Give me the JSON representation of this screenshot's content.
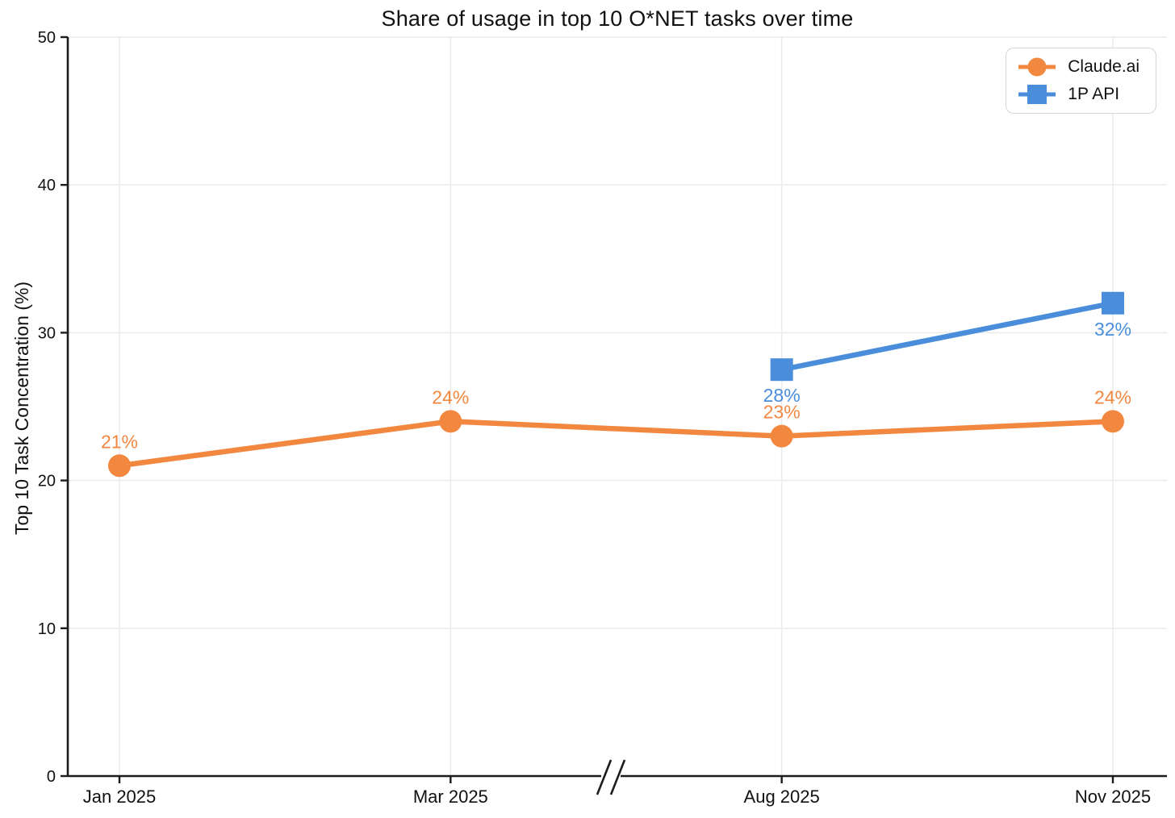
{
  "chart_data": {
    "type": "line",
    "title": "Share of usage in top 10 O*NET tasks over time",
    "xlabel": "",
    "ylabel": "Top 10 Task Concentration (%)",
    "categories": [
      "Jan 2025",
      "Mar 2025",
      "Aug 2025",
      "Nov 2025"
    ],
    "y_ticks": [
      0,
      10,
      20,
      30,
      40,
      50
    ],
    "y_tick_labels": [
      "0",
      "10",
      "20",
      "30",
      "40",
      "50"
    ],
    "ylim": [
      0,
      50
    ],
    "grid": true,
    "legend_position": "top-right",
    "axis_break": {
      "symbol": "//",
      "between": [
        "Mar 2025",
        "Aug 2025"
      ]
    },
    "series": [
      {
        "name": "Claude.ai",
        "marker": "circle",
        "color": "#F2873F",
        "x": [
          "Jan 2025",
          "Mar 2025",
          "Aug 2025",
          "Nov 2025"
        ],
        "values": [
          21,
          24,
          23,
          24
        ],
        "labels": [
          "21%",
          "24%",
          "23%",
          "24%"
        ],
        "label_position": "above"
      },
      {
        "name": "1P API",
        "marker": "square",
        "color": "#4A8EDB",
        "x": [
          "Aug 2025",
          "Nov 2025"
        ],
        "values": [
          27.5,
          32
        ],
        "labels": [
          "28%",
          "32%"
        ],
        "label_position": "below"
      }
    ]
  }
}
